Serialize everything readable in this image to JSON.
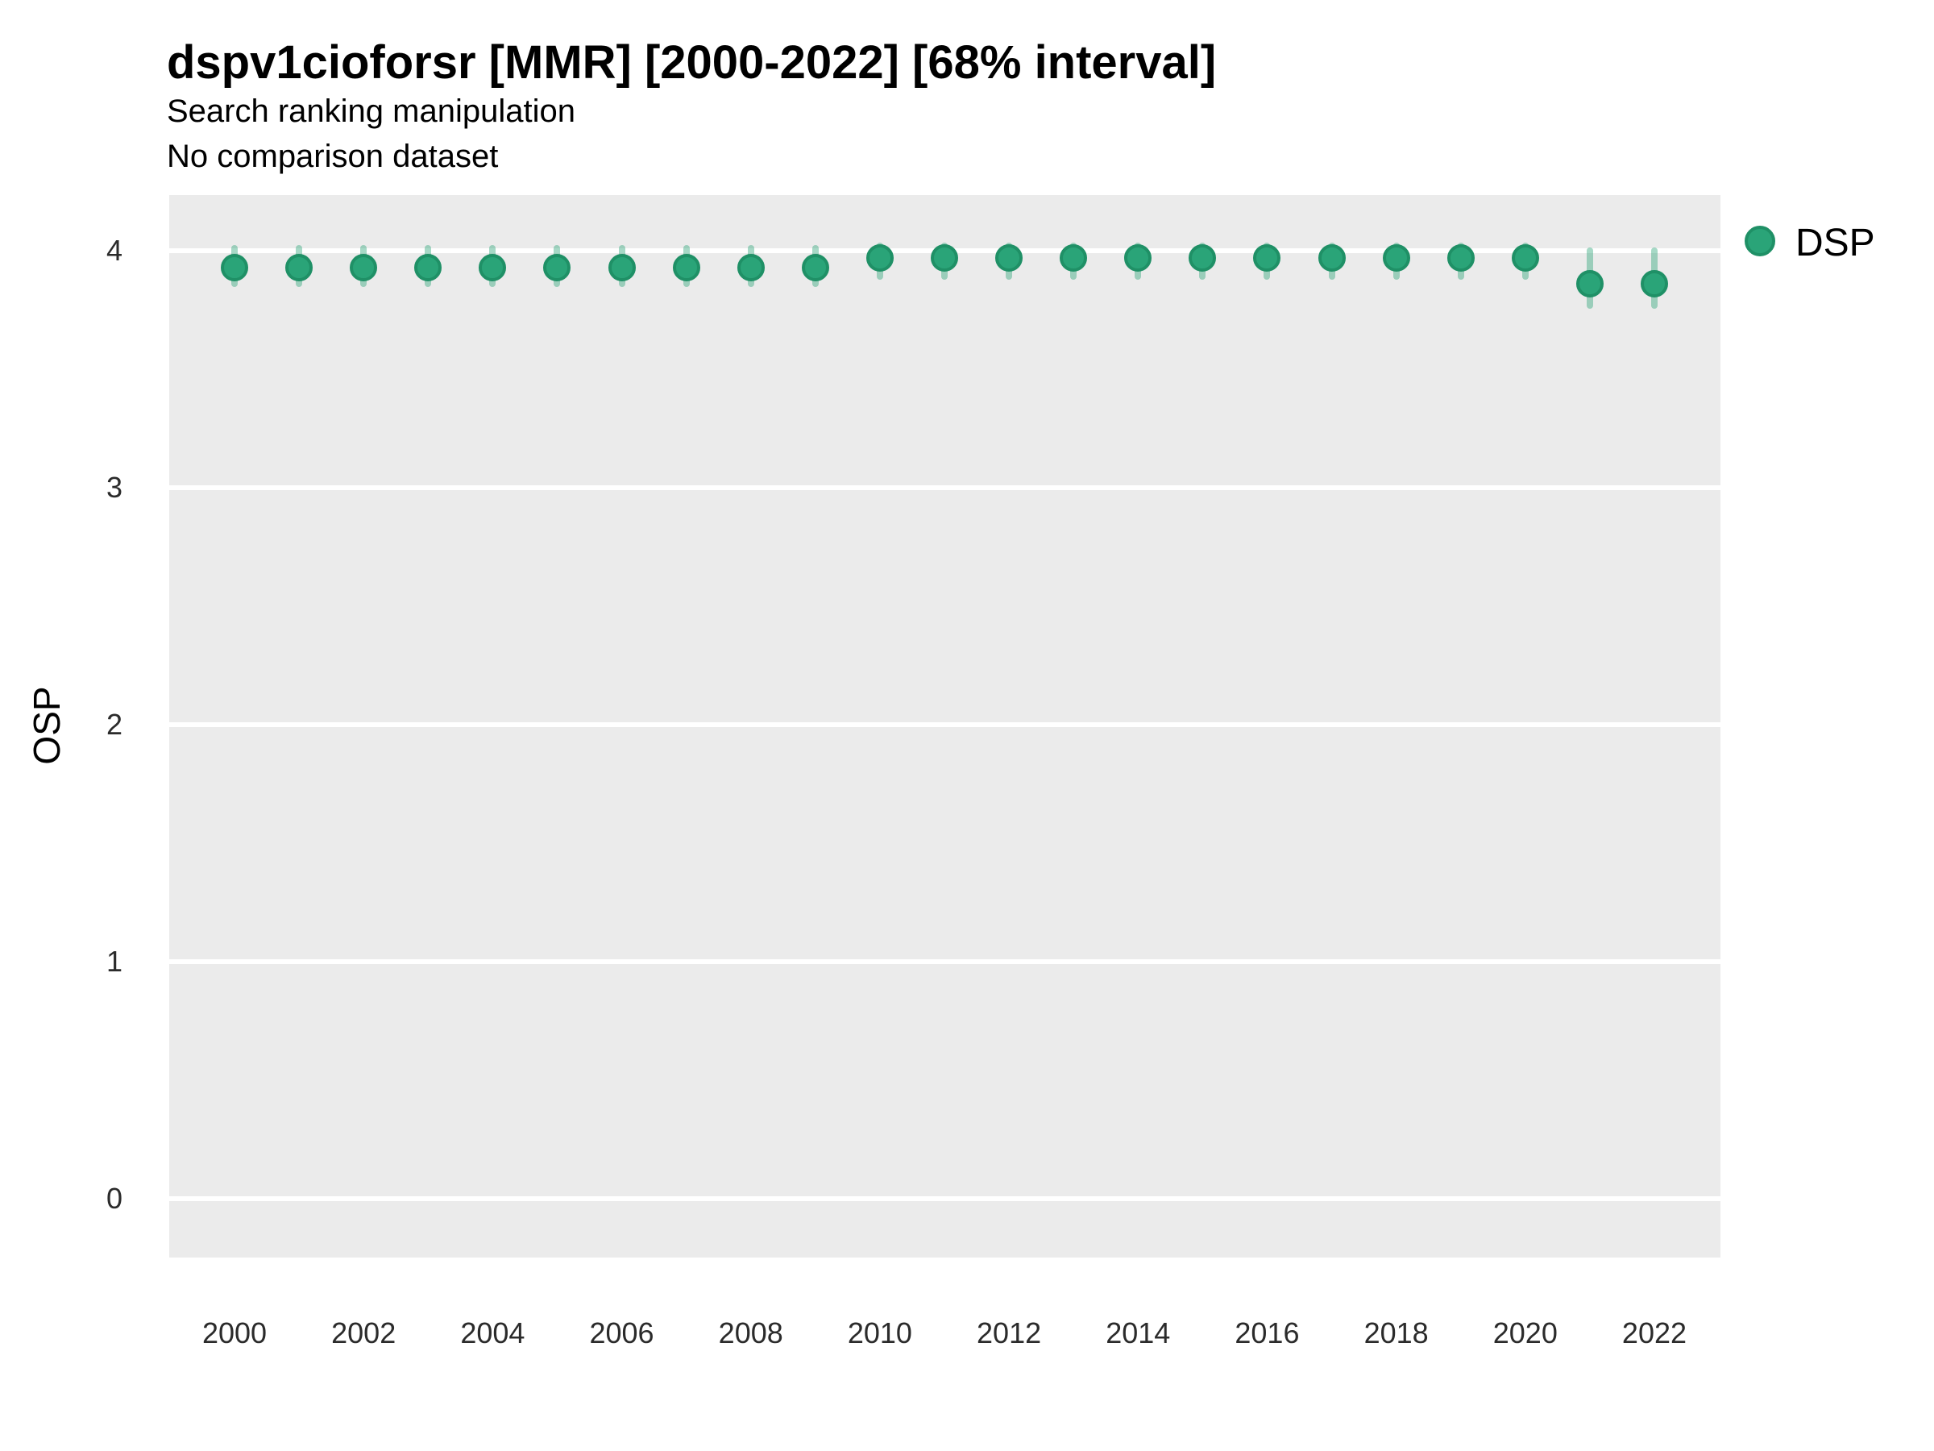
{
  "header": {
    "title": "dspv1cioforsr [MMR] [2000-2022] [68% interval]",
    "subtitle": "Search ranking manipulation",
    "note": "No comparison dataset"
  },
  "axes": {
    "y_label": "OSP",
    "y_ticks": [
      4,
      3,
      2,
      1,
      0
    ],
    "x_ticks": [
      2000,
      2002,
      2004,
      2006,
      2008,
      2010,
      2012,
      2014,
      2016,
      2018,
      2020,
      2022
    ]
  },
  "legend": {
    "items": [
      {
        "label": "DSP",
        "color": "#2aa478",
        "border": "#1f9066"
      }
    ]
  },
  "colors": {
    "panel_background": "#ebebeb",
    "gridline": "#ffffff",
    "point_fill": "#2aa478",
    "point_border": "#1f9066",
    "errorbar": "rgba(42, 164, 120, 0.42)"
  },
  "chart_data": {
    "type": "scatter",
    "title": "dspv1cioforsr [MMR] [2000-2022] [68% interval]",
    "subtitle": "Search ranking manipulation",
    "note": "No comparison dataset",
    "xlabel": "",
    "ylabel": "OSP",
    "xlim": [
      1999,
      2023.1
    ],
    "ylim": [
      -0.25,
      4.23
    ],
    "grid": "horizontal-major-only",
    "legend_position": "right-top",
    "interval": "68%",
    "series": [
      {
        "name": "DSP",
        "marker": "point-with-interval",
        "color": "#2aa478",
        "x": [
          2000,
          2001,
          2002,
          2003,
          2004,
          2005,
          2006,
          2007,
          2008,
          2009,
          2010,
          2011,
          2012,
          2013,
          2014,
          2015,
          2016,
          2017,
          2018,
          2019,
          2020,
          2021,
          2022
        ],
        "y": [
          3.93,
          3.93,
          3.93,
          3.93,
          3.93,
          3.93,
          3.93,
          3.93,
          3.93,
          3.93,
          3.97,
          3.97,
          3.97,
          3.97,
          3.97,
          3.97,
          3.97,
          3.97,
          3.97,
          3.97,
          3.97,
          3.86,
          3.86
        ],
        "y_lo": [
          3.86,
          3.86,
          3.86,
          3.86,
          3.86,
          3.86,
          3.86,
          3.86,
          3.86,
          3.86,
          3.89,
          3.89,
          3.89,
          3.89,
          3.89,
          3.89,
          3.89,
          3.89,
          3.89,
          3.89,
          3.89,
          3.77,
          3.77
        ],
        "y_hi": [
          4.01,
          4.01,
          4.01,
          4.01,
          4.01,
          4.01,
          4.01,
          4.01,
          4.01,
          4.01,
          4.02,
          4.02,
          4.02,
          4.02,
          4.02,
          4.02,
          4.02,
          4.02,
          4.02,
          4.02,
          4.02,
          4.0,
          4.0
        ]
      }
    ]
  }
}
